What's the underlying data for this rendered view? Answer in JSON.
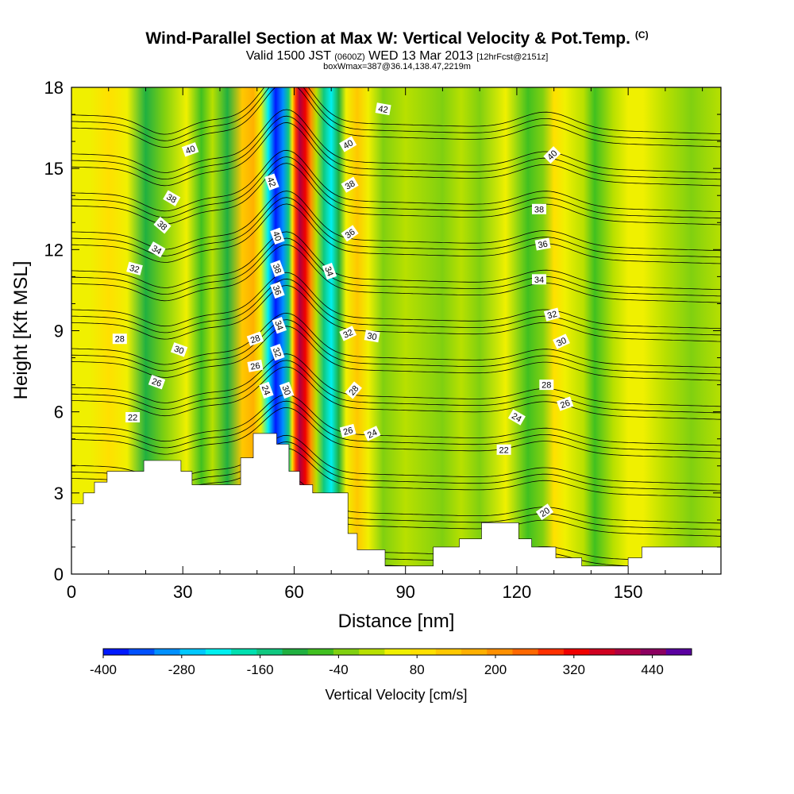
{
  "title": {
    "main": "Wind-Parallel Section at Max W: Vertical Velocity & Pot.Temp.",
    "copyright": "(C)",
    "valid_a": "Valid 1500 JST ",
    "valid_z": "(0600Z)",
    "valid_b": " WED 13 Mar 2013 ",
    "valid_fcst": "[12hrFcst@2151z]",
    "subtitle": "boxWmax=387@36.14,138.47,2219m"
  },
  "chart_data": {
    "type": "heatmap",
    "xlabel": "Distance [nm]",
    "ylabel": "Height [Kft MSL]",
    "xlim": [
      0,
      175
    ],
    "ylim": [
      0,
      18
    ],
    "xticks": [
      0,
      30,
      60,
      90,
      120,
      150
    ],
    "yticks": [
      0,
      3,
      6,
      9,
      12,
      15,
      18
    ],
    "colorbar": {
      "label": "Vertical Velocity [cm/s]",
      "tick_labels": [
        "-400",
        "-280",
        "-160",
        "-40",
        "80",
        "200",
        "320",
        "440"
      ],
      "tick_values": [
        -400,
        -280,
        -160,
        -40,
        80,
        200,
        320,
        440
      ],
      "range": [
        -400,
        500
      ],
      "colors": [
        "#0019ff",
        "#0050ff",
        "#0090ff",
        "#00c8ff",
        "#00f0f0",
        "#00e0b0",
        "#10c880",
        "#20b040",
        "#40c020",
        "#80d010",
        "#b8e000",
        "#f0f000",
        "#ffe000",
        "#ffc800",
        "#ffb000",
        "#ff9000",
        "#ff6800",
        "#ff3000",
        "#f00000",
        "#d00020",
        "#b00040",
        "#8c0060",
        "#5a00a0"
      ]
    },
    "field_bands": [
      {
        "x": 0,
        "w": 40
      },
      {
        "x": 5,
        "w": 55
      },
      {
        "x": 10,
        "w": 70
      },
      {
        "x": 15,
        "w": 40
      },
      {
        "x": 20,
        "w": -110
      },
      {
        "x": 25,
        "w": -10
      },
      {
        "x": 31,
        "w": 55
      },
      {
        "x": 35,
        "w": -60
      },
      {
        "x": 38,
        "w": 20
      },
      {
        "x": 42,
        "w": -90
      },
      {
        "x": 46,
        "w": 120
      },
      {
        "x": 49,
        "w": 180
      },
      {
        "x": 51,
        "w": 40
      },
      {
        "x": 53,
        "w": -220
      },
      {
        "x": 55,
        "w": -400
      },
      {
        "x": 57,
        "w": -320
      },
      {
        "x": 58.5,
        "w": -150
      },
      {
        "x": 59.5,
        "w": 100
      },
      {
        "x": 60.5,
        "w": 280
      },
      {
        "x": 61.5,
        "w": 387
      },
      {
        "x": 63,
        "w": 330
      },
      {
        "x": 64.5,
        "w": 220
      },
      {
        "x": 66,
        "w": 30
      },
      {
        "x": 68,
        "w": -130
      },
      {
        "x": 70,
        "w": -220
      },
      {
        "x": 72,
        "w": -90
      },
      {
        "x": 74,
        "w": 40
      },
      {
        "x": 77,
        "w": 110
      },
      {
        "x": 80,
        "w": 60
      },
      {
        "x": 84,
        "w": -30
      },
      {
        "x": 90,
        "w": 20
      },
      {
        "x": 100,
        "w": -20
      },
      {
        "x": 105,
        "w": 30
      },
      {
        "x": 110,
        "w": -40
      },
      {
        "x": 117,
        "w": 40
      },
      {
        "x": 123,
        "w": -80
      },
      {
        "x": 127,
        "w": -40
      },
      {
        "x": 130,
        "w": 80
      },
      {
        "x": 133,
        "w": 40
      },
      {
        "x": 138,
        "w": 20
      },
      {
        "x": 141,
        "w": -60
      },
      {
        "x": 146,
        "w": 20
      },
      {
        "x": 150,
        "w": 60
      },
      {
        "x": 154,
        "w": 40
      },
      {
        "x": 160,
        "w": 25
      },
      {
        "x": 167,
        "w": -35
      },
      {
        "x": 175,
        "w": 20
      }
    ],
    "terrain_height": [
      [
        0,
        2.6
      ],
      [
        3.2,
        2.6
      ],
      [
        3.2,
        3.0
      ],
      [
        6.2,
        3.0
      ],
      [
        6.2,
        3.4
      ],
      [
        9.6,
        3.4
      ],
      [
        9.6,
        3.8
      ],
      [
        19.5,
        3.8
      ],
      [
        19.5,
        4.2
      ],
      [
        29.5,
        4.2
      ],
      [
        29.5,
        3.8
      ],
      [
        32.5,
        3.8
      ],
      [
        32.5,
        3.3
      ],
      [
        45.6,
        3.3
      ],
      [
        45.6,
        4.3
      ],
      [
        49,
        4.3
      ],
      [
        49,
        5.2
      ],
      [
        55.3,
        5.2
      ],
      [
        55.3,
        4.8
      ],
      [
        58.6,
        4.8
      ],
      [
        58.6,
        3.8
      ],
      [
        61.5,
        3.8
      ],
      [
        61.5,
        3.3
      ],
      [
        65,
        3.3
      ],
      [
        65,
        3.0
      ],
      [
        74.5,
        3.0
      ],
      [
        74.5,
        1.5
      ],
      [
        77,
        1.5
      ],
      [
        77,
        0.9
      ],
      [
        84.5,
        0.9
      ],
      [
        84.5,
        0.3
      ],
      [
        97.5,
        0.3
      ],
      [
        97.5,
        1.0
      ],
      [
        104.5,
        1.0
      ],
      [
        104.5,
        1.3
      ],
      [
        110.5,
        1.3
      ],
      [
        110.5,
        1.9
      ],
      [
        120.5,
        1.9
      ],
      [
        120.5,
        1.3
      ],
      [
        124,
        1.3
      ],
      [
        124,
        1.0
      ],
      [
        130.5,
        1.0
      ],
      [
        130.5,
        0.6
      ],
      [
        137.5,
        0.6
      ],
      [
        137.5,
        0.3
      ],
      [
        150,
        0.3
      ],
      [
        150,
        0.6
      ],
      [
        153.7,
        0.6
      ],
      [
        153.7,
        1.0
      ],
      [
        175,
        1.0
      ]
    ],
    "theta_contours": [
      20,
      22,
      24,
      26,
      28,
      30,
      32,
      34,
      36,
      38,
      40,
      42
    ],
    "contour_labels": [
      {
        "text": "42",
        "x": 84,
        "y": 17.2,
        "rot": 10
      },
      {
        "text": "40",
        "x": 32,
        "y": 15.7,
        "rot": -20
      },
      {
        "text": "40",
        "x": 74.5,
        "y": 15.9,
        "rot": -30
      },
      {
        "text": "40",
        "x": 129.5,
        "y": 15.5,
        "rot": -45
      },
      {
        "text": "42",
        "x": 54,
        "y": 14.5,
        "rot": 70
      },
      {
        "text": "38",
        "x": 27,
        "y": 13.9,
        "rot": 30
      },
      {
        "text": "38",
        "x": 75,
        "y": 14.4,
        "rot": -30
      },
      {
        "text": "38",
        "x": 126,
        "y": 13.5,
        "rot": 0
      },
      {
        "text": "38",
        "x": 24.5,
        "y": 12.9,
        "rot": 40
      },
      {
        "text": "40",
        "x": 55.5,
        "y": 12.5,
        "rot": 70
      },
      {
        "text": "36",
        "x": 75,
        "y": 12.6,
        "rot": -35
      },
      {
        "text": "36",
        "x": 127,
        "y": 12.2,
        "rot": -10
      },
      {
        "text": "34",
        "x": 23,
        "y": 12.0,
        "rot": 30
      },
      {
        "text": "38",
        "x": 55.5,
        "y": 11.3,
        "rot": 70
      },
      {
        "text": "34",
        "x": 69.5,
        "y": 11.2,
        "rot": 70
      },
      {
        "text": "32",
        "x": 17,
        "y": 11.3,
        "rot": 15
      },
      {
        "text": "34",
        "x": 126,
        "y": 10.9,
        "rot": 0
      },
      {
        "text": "36",
        "x": 55.5,
        "y": 10.5,
        "rot": 70
      },
      {
        "text": "32",
        "x": 129.5,
        "y": 9.6,
        "rot": -15
      },
      {
        "text": "34",
        "x": 56,
        "y": 9.2,
        "rot": 70
      },
      {
        "text": "32",
        "x": 74.5,
        "y": 8.9,
        "rot": -25
      },
      {
        "text": "30",
        "x": 81,
        "y": 8.8,
        "rot": 10
      },
      {
        "text": "28",
        "x": 13,
        "y": 8.7,
        "rot": 0
      },
      {
        "text": "28",
        "x": 49.5,
        "y": 8.7,
        "rot": -20
      },
      {
        "text": "30",
        "x": 132,
        "y": 8.6,
        "rot": -25
      },
      {
        "text": "30",
        "x": 29,
        "y": 8.3,
        "rot": 20
      },
      {
        "text": "32",
        "x": 55.5,
        "y": 8.2,
        "rot": 70
      },
      {
        "text": "26",
        "x": 49.5,
        "y": 7.7,
        "rot": -10
      },
      {
        "text": "28",
        "x": 128,
        "y": 7.0,
        "rot": 0
      },
      {
        "text": "26",
        "x": 23,
        "y": 7.1,
        "rot": 20
      },
      {
        "text": "24",
        "x": 52.5,
        "y": 6.8,
        "rot": 70
      },
      {
        "text": "30",
        "x": 58,
        "y": 6.8,
        "rot": 70
      },
      {
        "text": "28",
        "x": 76,
        "y": 6.8,
        "rot": -50
      },
      {
        "text": "26",
        "x": 133,
        "y": 6.3,
        "rot": -20
      },
      {
        "text": "24",
        "x": 120,
        "y": 5.8,
        "rot": 30
      },
      {
        "text": "22",
        "x": 16.5,
        "y": 5.8,
        "rot": 0
      },
      {
        "text": "26",
        "x": 74.5,
        "y": 5.3,
        "rot": -15
      },
      {
        "text": "24",
        "x": 81,
        "y": 5.2,
        "rot": -25
      },
      {
        "text": "22",
        "x": 116.5,
        "y": 4.6,
        "rot": 0
      },
      {
        "text": "20",
        "x": 127.5,
        "y": 2.3,
        "rot": -35
      }
    ]
  }
}
